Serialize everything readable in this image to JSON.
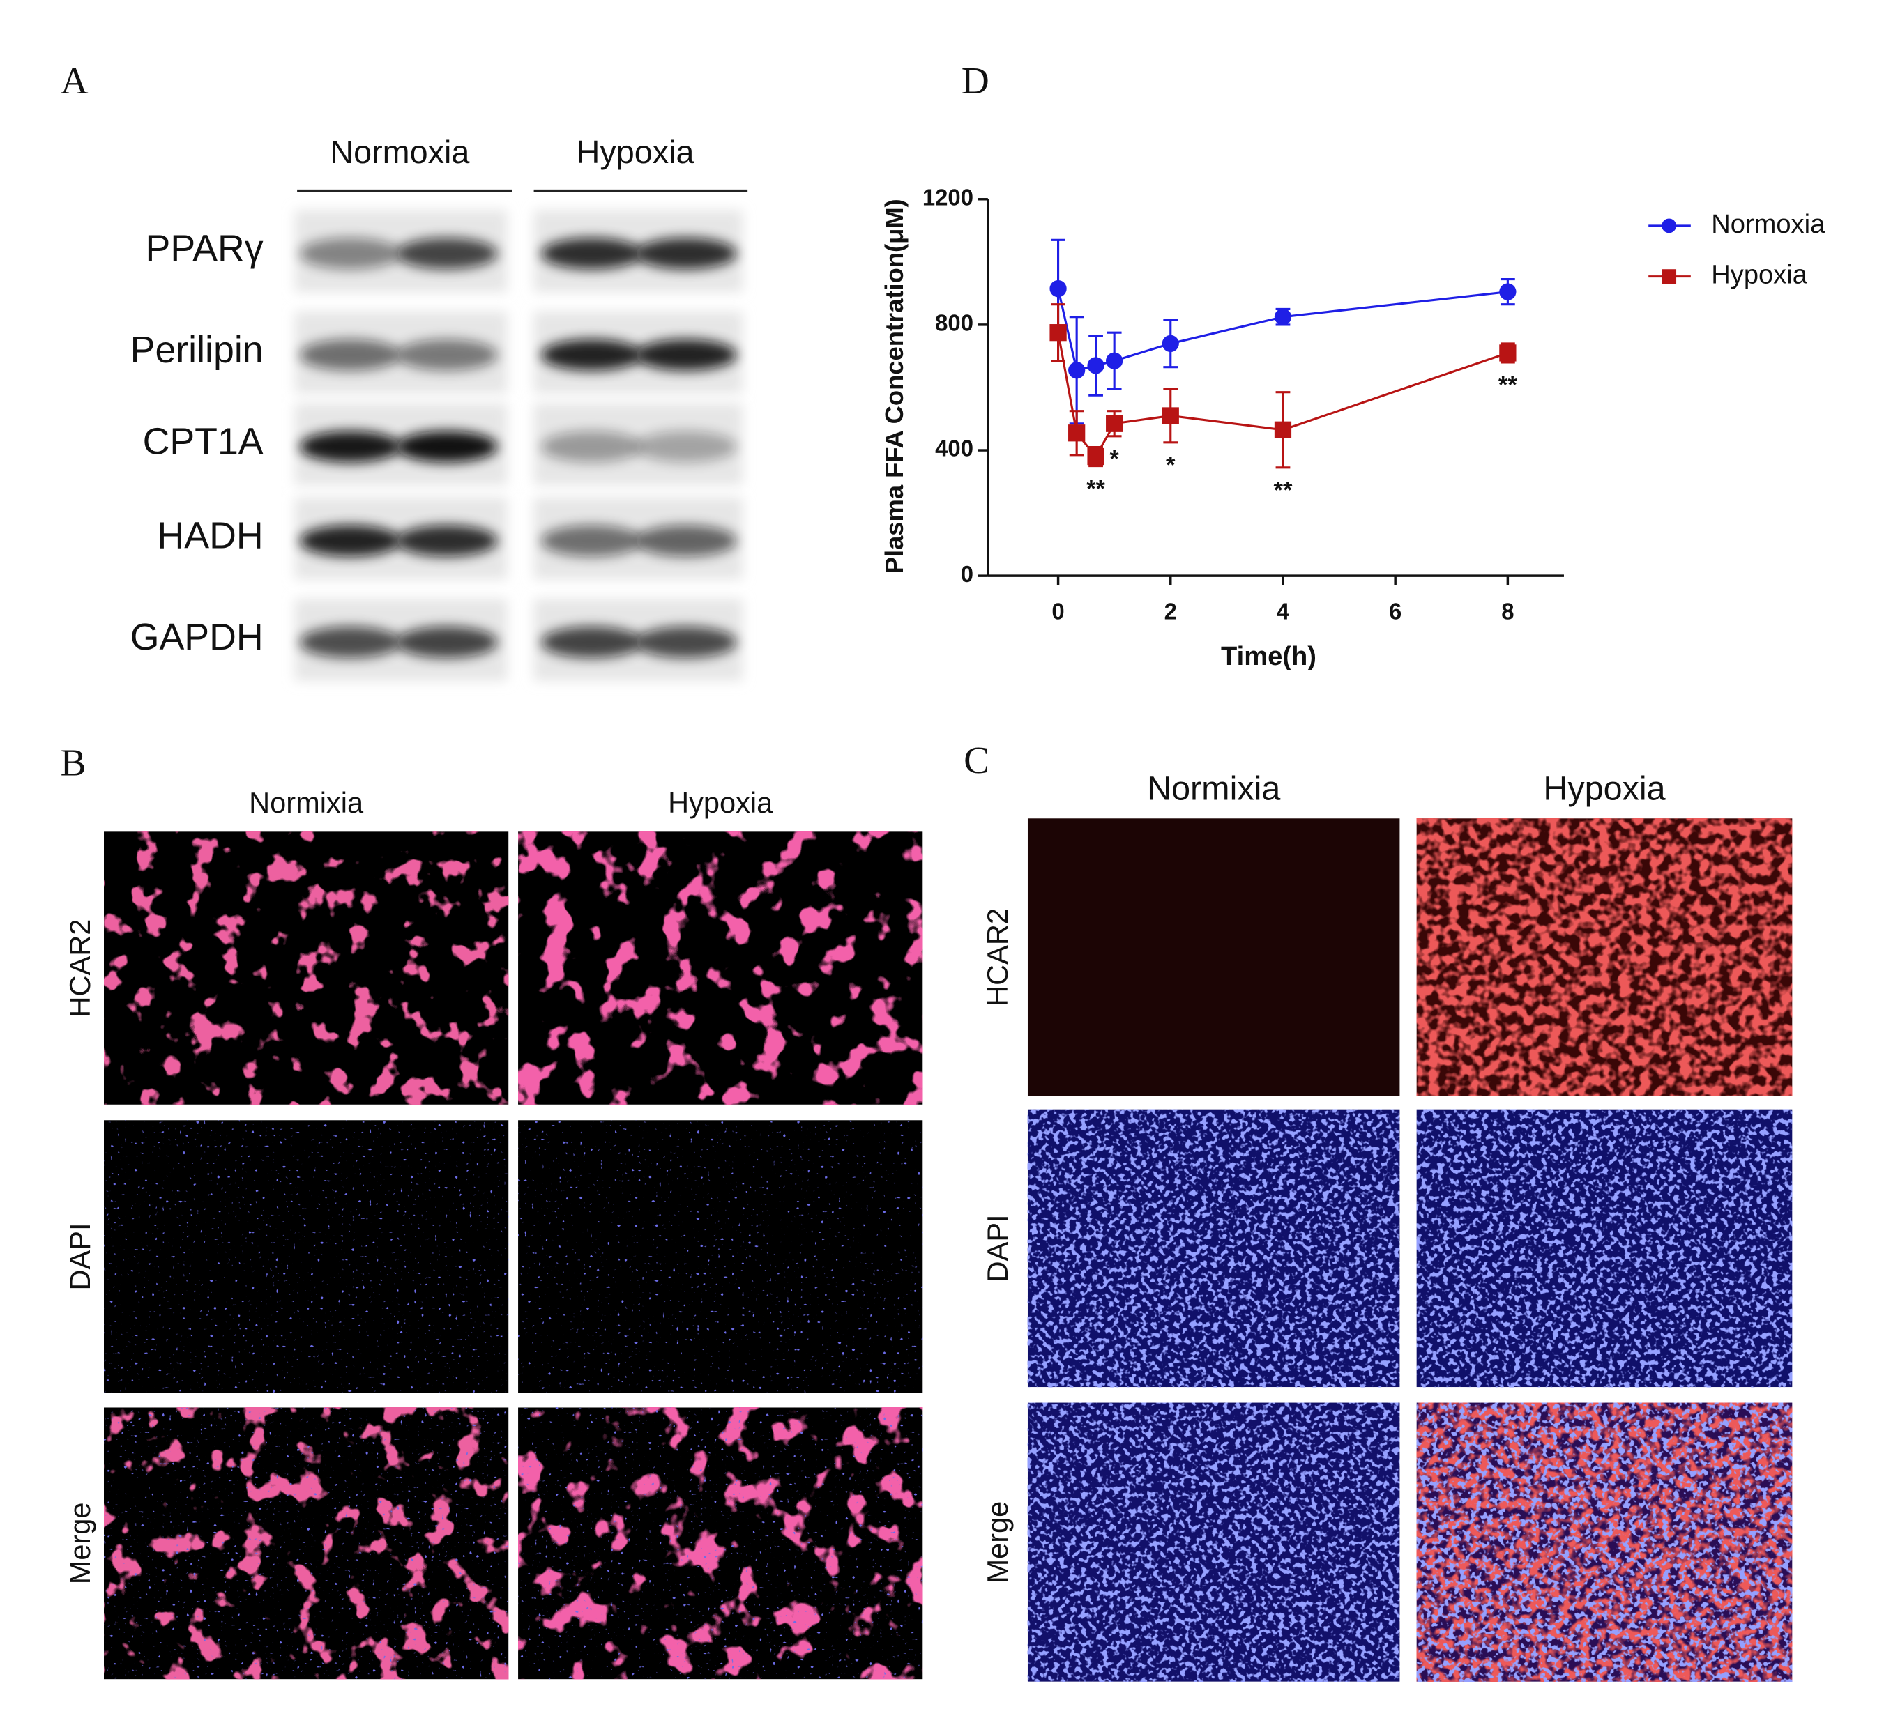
{
  "panels": {
    "A": {
      "label": "A",
      "groups": [
        "Normoxia",
        "Hypoxia"
      ],
      "rows": [
        "PPARγ",
        "Perilipin",
        "CPT1A",
        "HADH",
        "GAPDH"
      ]
    },
    "B": {
      "label": "B",
      "columns": [
        "Normixia",
        "Hypoxia"
      ],
      "rows": [
        "HCAR2",
        "DAPI",
        "Merge"
      ]
    },
    "C": {
      "label": "C",
      "columns": [
        "Normixia",
        "Hypoxia"
      ],
      "rows": [
        "HCAR2",
        "DAPI",
        "Merge"
      ]
    },
    "D": {
      "label": "D"
    }
  },
  "chart_data": {
    "type": "line",
    "x_label": "Time(h)",
    "y_label": "Plasma FFA Concentration(μM)",
    "x": [
      0,
      0.33,
      0.67,
      1,
      2,
      4,
      8
    ],
    "series": [
      {
        "name": "Normoxia",
        "color": "#1f1fe6",
        "marker": "circle",
        "values": [
          915,
          655,
          670,
          685,
          740,
          825,
          905
        ],
        "errors": [
          155,
          170,
          95,
          90,
          75,
          25,
          40
        ]
      },
      {
        "name": "Hypoxia",
        "color": "#b81414",
        "marker": "square",
        "values": [
          775,
          455,
          380,
          485,
          510,
          465,
          710
        ],
        "errors": [
          90,
          70,
          30,
          40,
          85,
          120,
          30
        ]
      }
    ],
    "annotations": [
      {
        "x": 0.67,
        "text": "**"
      },
      {
        "x": 1,
        "text": "*"
      },
      {
        "x": 2,
        "text": "*"
      },
      {
        "x": 4,
        "text": "**"
      },
      {
        "x": 8,
        "text": "**"
      }
    ],
    "xlim": [
      -1.25,
      9
    ],
    "ylim": [
      0,
      1200
    ],
    "xticks": [
      0,
      2,
      4,
      6,
      8
    ],
    "yticks": [
      0,
      400,
      800,
      1200
    ],
    "legend": "top-right",
    "grid": false
  }
}
